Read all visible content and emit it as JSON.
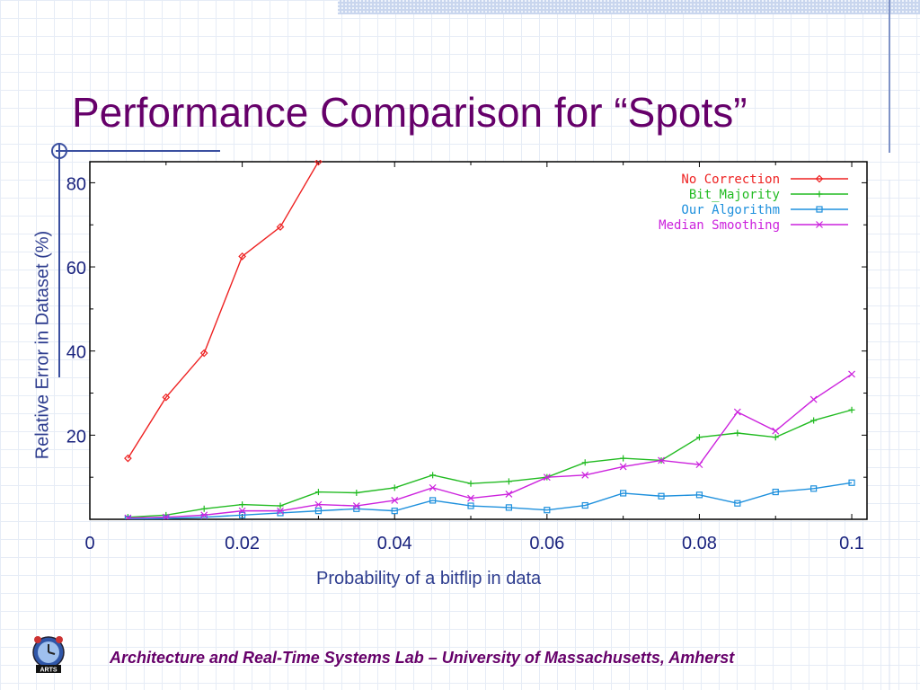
{
  "slide": {
    "title": "Performance Comparison for “Spots”",
    "footer": "Architecture and Real-Time Systems Lab – University of Massachusetts, Amherst",
    "logo_text": "ARTS",
    "colors": {
      "title": "#66006a",
      "axis_text": "#2e3d8f",
      "accent_line": "#3a4fa0"
    }
  },
  "chart_data": {
    "type": "line",
    "title": "",
    "xlabel": "Probability of a bitflip in data",
    "ylabel": "Relative Error in Dataset (%)",
    "xlim": [
      0,
      0.102
    ],
    "ylim": [
      0,
      85
    ],
    "x_ticks": [
      0,
      0.02,
      0.04,
      0.06,
      0.08,
      0.1
    ],
    "x_tick_labels": [
      "0",
      "0.02",
      "0.04",
      "0.06",
      "0.08",
      "0.1"
    ],
    "y_ticks": [
      20,
      40,
      60,
      80
    ],
    "y_tick_labels": [
      "20",
      "40",
      "60",
      "80"
    ],
    "legend_position": "top-right",
    "grid": false,
    "series": [
      {
        "name": "No Correction",
        "color": "#ee2222",
        "marker": "diamond",
        "x": [
          0.005,
          0.01,
          0.015,
          0.02,
          0.025,
          0.03
        ],
        "y": [
          14.5,
          29,
          39.5,
          62.5,
          69.5,
          85
        ]
      },
      {
        "name": "Bit_Majority",
        "color": "#22bb22",
        "marker": "plus",
        "x": [
          0.005,
          0.01,
          0.015,
          0.02,
          0.025,
          0.03,
          0.035,
          0.04,
          0.045,
          0.05,
          0.055,
          0.06,
          0.065,
          0.07,
          0.075,
          0.08,
          0.085,
          0.09,
          0.095,
          0.1
        ],
        "y": [
          0.5,
          1,
          2.5,
          3.5,
          3.2,
          6.5,
          6.3,
          7.5,
          10.5,
          8.5,
          9,
          10,
          13.5,
          14.5,
          14,
          19.5,
          20.5,
          19.5,
          23.5,
          26
        ]
      },
      {
        "name": "Our Algorithm",
        "color": "#1e90dd",
        "marker": "square",
        "x": [
          0.005,
          0.01,
          0.015,
          0.02,
          0.025,
          0.03,
          0.035,
          0.04,
          0.045,
          0.05,
          0.055,
          0.06,
          0.065,
          0.07,
          0.075,
          0.08,
          0.085,
          0.09,
          0.095,
          0.1
        ],
        "y": [
          0.1,
          0.2,
          0.5,
          1,
          1.5,
          2,
          2.5,
          2,
          4.5,
          3.2,
          2.8,
          2.2,
          3.3,
          6.2,
          5.5,
          5.8,
          3.8,
          6.5,
          7.3,
          8.7
        ]
      },
      {
        "name": "Median Smoothing",
        "color": "#cc22dd",
        "marker": "x",
        "x": [
          0.005,
          0.01,
          0.015,
          0.02,
          0.025,
          0.03,
          0.035,
          0.04,
          0.045,
          0.05,
          0.055,
          0.06,
          0.065,
          0.07,
          0.075,
          0.08,
          0.085,
          0.09,
          0.095,
          0.1
        ],
        "y": [
          0.3,
          0.5,
          1,
          2,
          2,
          3.5,
          3.2,
          4.5,
          7.5,
          5,
          6,
          10,
          10.5,
          12.5,
          14,
          13,
          25.5,
          21,
          28.5,
          34.5
        ]
      }
    ]
  }
}
